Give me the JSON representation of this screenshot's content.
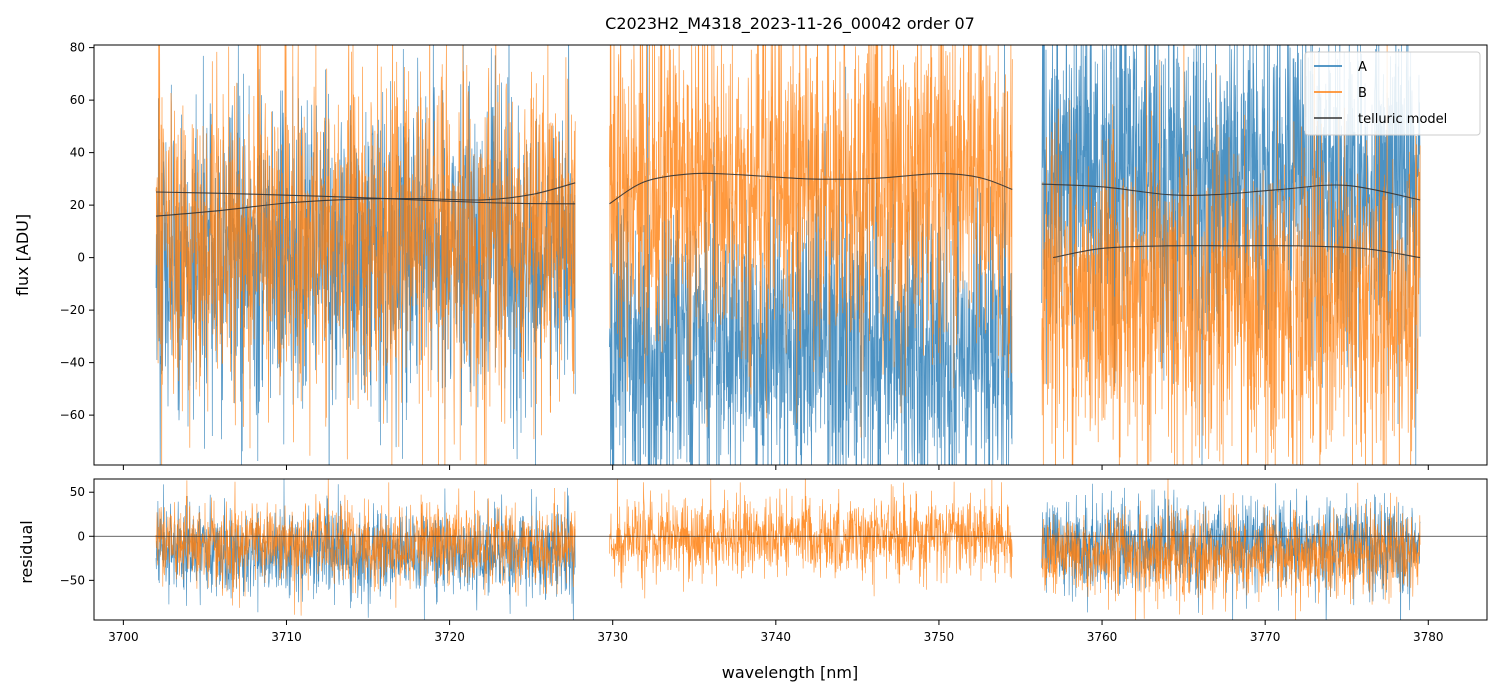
{
  "chart_data": [
    {
      "type": "line",
      "panel": "main",
      "title": "C2023H2_M4318_2023-11-26_00042  order 07",
      "xlabel": "",
      "ylabel": "flux [ADU]",
      "xlim": [
        3698.2,
        3783.6
      ],
      "ylim": [
        -79,
        81
      ],
      "xticks": [
        3700,
        3710,
        3720,
        3730,
        3740,
        3750,
        3760,
        3770,
        3780
      ],
      "yticks": [
        -60,
        -40,
        -20,
        0,
        20,
        40,
        60,
        80
      ],
      "ytick_labels": [
        "−60",
        "−40",
        "−20",
        "0",
        "20",
        "40",
        "60",
        "80"
      ],
      "legend_position": "top-right",
      "segments": [
        {
          "x_start": 3702.0,
          "x_end": 3727.7
        },
        {
          "x_start": 3729.8,
          "x_end": 3754.5
        },
        {
          "x_start": 3756.3,
          "x_end": 3779.5
        }
      ],
      "series": [
        {
          "name": "A",
          "color": "#1f77b4",
          "kind": "noisy-spectrum",
          "segment_mean": [
            2,
            -35,
            30
          ],
          "segment_spread": [
            28,
            30,
            32
          ]
        },
        {
          "name": "B",
          "color": "#ff7f0e",
          "kind": "noisy-spectrum",
          "segment_mean": [
            10,
            28,
            -15
          ],
          "segment_spread": [
            30,
            32,
            30
          ]
        },
        {
          "name": "telluric model",
          "color": "#333333",
          "kind": "smooth-curve",
          "curves": [
            {
              "x": [
                3702.0,
                3706,
                3710,
                3714,
                3718,
                3722,
                3725,
                3727.7
              ],
              "y": [
                25,
                24.5,
                23.8,
                23,
                22,
                21,
                20.6,
                20.5
              ]
            },
            {
              "x": [
                3702.0,
                3706,
                3710,
                3714,
                3718,
                3722,
                3725,
                3727.7
              ],
              "y": [
                15.8,
                18,
                20.8,
                22.2,
                22.5,
                22,
                24,
                28.5
              ]
            },
            {
              "x": [
                3729.8,
                3732,
                3735,
                3738,
                3742,
                3746,
                3750,
                3752.5,
                3754.5
              ],
              "y": [
                20.5,
                29,
                32,
                31.5,
                30,
                30.2,
                32,
                30.5,
                26
              ]
            },
            {
              "x": [
                3756.3,
                3760,
                3764,
                3767,
                3771,
                3775,
                3779.5
              ],
              "y": [
                28,
                27,
                24,
                24,
                26,
                27.5,
                22
              ]
            },
            {
              "x": [
                3757.0,
                3760,
                3764,
                3768,
                3772,
                3776,
                3779.5
              ],
              "y": [
                0,
                3.5,
                4.5,
                4.5,
                4.5,
                3.5,
                0
              ]
            }
          ]
        }
      ]
    },
    {
      "type": "line",
      "panel": "residual",
      "title": "",
      "xlabel": "wavelength [nm]",
      "ylabel": "residual",
      "xlim": [
        3698.2,
        3783.6
      ],
      "ylim": [
        -95,
        65
      ],
      "xticks": [
        3700,
        3710,
        3720,
        3730,
        3740,
        3750,
        3760,
        3770,
        3780
      ],
      "yticks": [
        -50,
        0,
        50
      ],
      "ytick_labels": [
        "−50",
        "0",
        "50"
      ],
      "zero_line": 0,
      "series": [
        {
          "name": "A",
          "color": "#1f77b4",
          "kind": "noisy-residual",
          "segments_present": [
            0,
            2
          ],
          "segment_mean": [
            -18,
            0,
            -10
          ],
          "segment_spread": [
            25,
            0,
            26
          ]
        },
        {
          "name": "B",
          "color": "#ff7f0e",
          "kind": "noisy-residual",
          "segments_present": [
            0,
            1,
            2
          ],
          "segment_mean": [
            -10,
            0,
            -20
          ],
          "segment_spread": [
            22,
            22,
            24
          ]
        }
      ]
    }
  ]
}
